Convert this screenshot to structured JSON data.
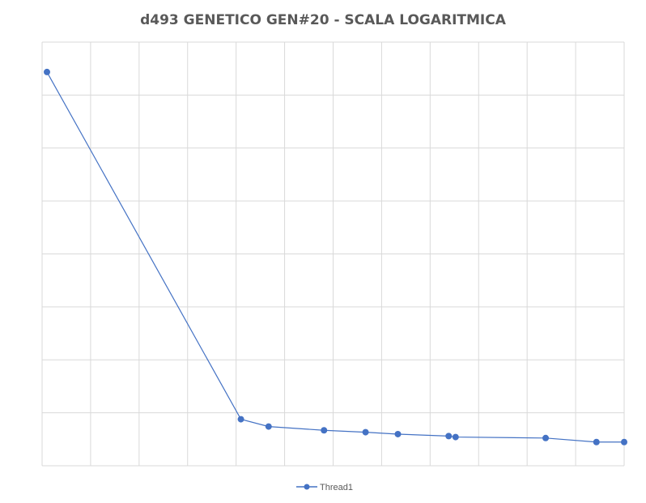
{
  "chart_data": {
    "type": "line",
    "title": "d493 GENETICO GEN#20 - SCALA LOGARITMICA",
    "xlabel": "",
    "ylabel": "",
    "log_scale": true,
    "grid": true,
    "legend_position": "bottom",
    "series": [
      {
        "name": "Thread1",
        "color": "#4472C4",
        "points": [
          {
            "x": 0.0,
            "y": 6.8
          },
          {
            "x": 4.2,
            "y": 1.03
          },
          {
            "x": 4.8,
            "y": 0.99
          },
          {
            "x": 6.0,
            "y": 0.97
          },
          {
            "x": 6.9,
            "y": 0.96
          },
          {
            "x": 7.6,
            "y": 0.95
          },
          {
            "x": 8.7,
            "y": 0.94
          },
          {
            "x": 8.85,
            "y": 0.935
          },
          {
            "x": 10.8,
            "y": 0.93
          },
          {
            "x": 11.9,
            "y": 0.91
          },
          {
            "x": 12.5,
            "y": 0.91
          }
        ]
      }
    ],
    "xlim": [
      0,
      12.5
    ],
    "ylim": [
      0.8,
      8
    ]
  }
}
